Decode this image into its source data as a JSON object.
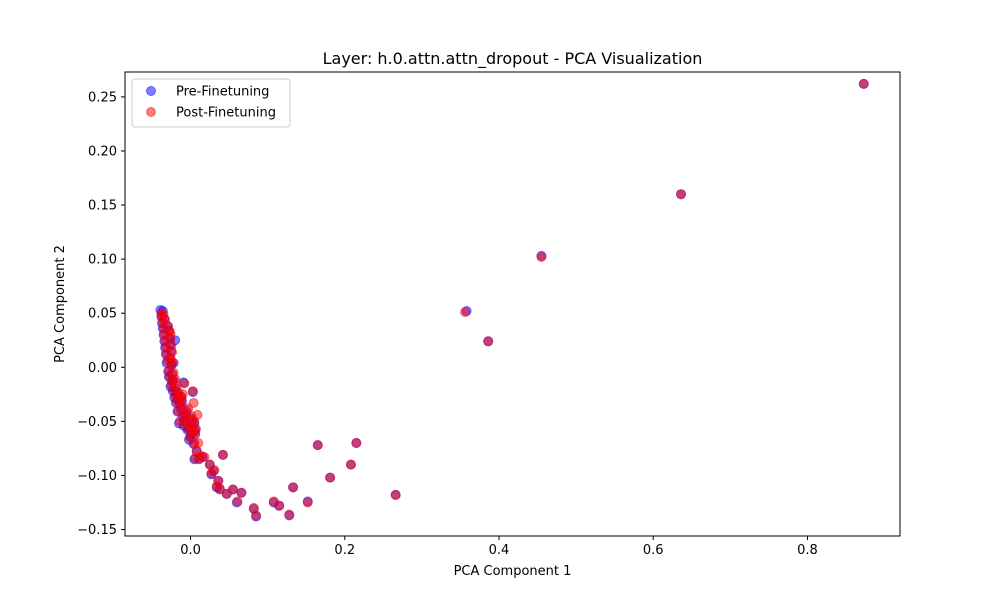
{
  "chart_data": {
    "type": "scatter",
    "title": "Layer: h.0.attn.attn_dropout - PCA Visualization",
    "xlabel": "PCA Component 1",
    "ylabel": "PCA Component 2",
    "xlim": [
      -0.085,
      0.92
    ],
    "ylim": [
      -0.156,
      0.273
    ],
    "xticks": [
      0.0,
      0.2,
      0.4,
      0.6,
      0.8
    ],
    "xtick_labels": [
      "0.0",
      "0.2",
      "0.4",
      "0.6",
      "0.8"
    ],
    "yticks": [
      -0.15,
      -0.1,
      -0.05,
      0.0,
      0.05,
      0.1,
      0.15,
      0.2,
      0.25
    ],
    "ytick_labels": [
      "−0.15",
      "−0.10",
      "−0.05",
      "0.00",
      "0.05",
      "0.10",
      "0.15",
      "0.20",
      "0.25"
    ],
    "grid": false,
    "legend_position": "top-left",
    "series": [
      {
        "name": "Pre-Finetuning",
        "color": "#0000ff",
        "alpha": 0.5,
        "points": [
          [
            0.873,
            0.262
          ],
          [
            0.636,
            0.16
          ],
          [
            0.455,
            0.103
          ],
          [
            0.358,
            0.052
          ],
          [
            0.386,
            0.024
          ],
          [
            0.266,
            -0.118
          ],
          [
            0.215,
            -0.07
          ],
          [
            0.208,
            -0.09
          ],
          [
            0.181,
            -0.102
          ],
          [
            0.165,
            -0.072
          ],
          [
            0.152,
            -0.124
          ],
          [
            0.133,
            -0.111
          ],
          [
            0.128,
            -0.137
          ],
          [
            0.115,
            -0.128
          ],
          [
            0.108,
            -0.125
          ],
          [
            0.085,
            -0.138
          ],
          [
            0.082,
            -0.131
          ],
          [
            0.066,
            -0.116
          ],
          [
            0.06,
            -0.125
          ],
          [
            0.055,
            -0.113
          ],
          [
            0.047,
            -0.117
          ],
          [
            0.042,
            -0.081
          ],
          [
            0.038,
            -0.113
          ],
          [
            0.036,
            -0.105
          ],
          [
            0.034,
            -0.111
          ],
          [
            0.03,
            -0.096
          ],
          [
            0.027,
            -0.099
          ],
          [
            0.025,
            -0.09
          ],
          [
            0.016,
            -0.083
          ],
          [
            0.011,
            -0.085
          ],
          [
            0.008,
            -0.078
          ],
          [
            0.005,
            -0.085
          ],
          [
            0.006,
            -0.062
          ],
          [
            0.004,
            -0.071
          ],
          [
            0.005,
            -0.052
          ],
          [
            0.003,
            -0.023
          ],
          [
            0.001,
            -0.061
          ],
          [
            -0.002,
            -0.067
          ],
          [
            -0.004,
            -0.058
          ],
          [
            -0.006,
            -0.044
          ],
          [
            -0.009,
            -0.054
          ],
          [
            -0.012,
            -0.039
          ],
          [
            -0.011,
            -0.031
          ],
          [
            -0.015,
            -0.052
          ],
          [
            -0.017,
            -0.041
          ],
          [
            -0.019,
            -0.033
          ],
          [
            -0.021,
            -0.028
          ],
          [
            -0.023,
            -0.022
          ],
          [
            -0.024,
            -0.013
          ],
          [
            -0.026,
            -0.018
          ],
          [
            -0.028,
            -0.009
          ],
          [
            -0.029,
            -0.004
          ],
          [
            -0.022,
            0.004
          ],
          [
            -0.031,
            0.004
          ],
          [
            -0.032,
            0.012
          ],
          [
            -0.033,
            0.018
          ],
          [
            -0.034,
            0.024
          ],
          [
            -0.02,
            0.025
          ],
          [
            -0.035,
            0.03
          ],
          [
            -0.036,
            0.036
          ],
          [
            -0.037,
            0.041
          ],
          [
            -0.038,
            0.047
          ],
          [
            -0.039,
            0.053
          ],
          [
            -0.036,
            0.052
          ],
          [
            -0.034,
            0.045
          ],
          [
            -0.03,
            0.038
          ],
          [
            -0.028,
            0.034
          ],
          [
            -0.027,
            0.027
          ],
          [
            -0.026,
            0.021
          ],
          [
            -0.025,
            0.015
          ],
          [
            -0.027,
            0.008
          ],
          [
            -0.025,
            0.002
          ],
          [
            -0.024,
            -0.006
          ],
          [
            -0.022,
            -0.012
          ],
          [
            -0.02,
            -0.019
          ],
          [
            -0.018,
            -0.024
          ],
          [
            -0.016,
            -0.029
          ],
          [
            -0.014,
            -0.034
          ],
          [
            -0.012,
            -0.027
          ],
          [
            -0.009,
            -0.014
          ],
          [
            -0.01,
            -0.046
          ],
          [
            -0.008,
            -0.049
          ],
          [
            -0.005,
            -0.04
          ],
          [
            -0.003,
            -0.056
          ],
          [
            0.0,
            -0.047
          ],
          [
            0.002,
            -0.051
          ],
          [
            0.0,
            -0.064
          ],
          [
            0.006,
            -0.058
          ]
        ]
      },
      {
        "name": "Post-Finetuning",
        "color": "#ff0000",
        "alpha": 0.5,
        "points": [
          [
            0.873,
            0.262
          ],
          [
            0.636,
            0.16
          ],
          [
            0.455,
            0.102
          ],
          [
            0.356,
            0.051
          ],
          [
            0.386,
            0.024
          ],
          [
            0.266,
            -0.118
          ],
          [
            0.215,
            -0.07
          ],
          [
            0.208,
            -0.09
          ],
          [
            0.181,
            -0.102
          ],
          [
            0.165,
            -0.072
          ],
          [
            0.152,
            -0.125
          ],
          [
            0.133,
            -0.111
          ],
          [
            0.128,
            -0.136
          ],
          [
            0.115,
            -0.128
          ],
          [
            0.108,
            -0.124
          ],
          [
            0.085,
            -0.137
          ],
          [
            0.082,
            -0.13
          ],
          [
            0.066,
            -0.116
          ],
          [
            0.061,
            -0.124
          ],
          [
            0.055,
            -0.113
          ],
          [
            0.047,
            -0.117
          ],
          [
            0.042,
            -0.081
          ],
          [
            0.038,
            -0.112
          ],
          [
            0.036,
            -0.105
          ],
          [
            0.034,
            -0.11
          ],
          [
            0.031,
            -0.095
          ],
          [
            0.027,
            -0.098
          ],
          [
            0.025,
            -0.09
          ],
          [
            0.018,
            -0.083
          ],
          [
            0.012,
            -0.084
          ],
          [
            0.008,
            -0.077
          ],
          [
            0.006,
            -0.084
          ],
          [
            0.006,
            -0.06
          ],
          [
            0.005,
            -0.07
          ],
          [
            0.005,
            -0.05
          ],
          [
            0.003,
            -0.022
          ],
          [
            0.002,
            -0.058
          ],
          [
            -0.001,
            -0.065
          ],
          [
            -0.004,
            -0.056
          ],
          [
            -0.006,
            -0.042
          ],
          [
            -0.008,
            -0.052
          ],
          [
            -0.011,
            -0.037
          ],
          [
            -0.012,
            -0.029
          ],
          [
            -0.014,
            -0.05
          ],
          [
            -0.016,
            -0.04
          ],
          [
            -0.018,
            -0.031
          ],
          [
            -0.02,
            -0.026
          ],
          [
            -0.022,
            -0.02
          ],
          [
            -0.023,
            -0.012
          ],
          [
            -0.025,
            -0.016
          ],
          [
            -0.027,
            -0.008
          ],
          [
            -0.028,
            -0.003
          ],
          [
            -0.024,
            0.005
          ],
          [
            -0.03,
            0.006
          ],
          [
            -0.031,
            0.013
          ],
          [
            -0.032,
            0.019
          ],
          [
            -0.033,
            0.025
          ],
          [
            -0.026,
            0.031
          ],
          [
            -0.034,
            0.031
          ],
          [
            -0.035,
            0.037
          ],
          [
            -0.036,
            0.042
          ],
          [
            -0.037,
            0.047
          ],
          [
            -0.038,
            0.05
          ],
          [
            -0.035,
            0.049
          ],
          [
            -0.033,
            0.044
          ],
          [
            -0.029,
            0.038
          ],
          [
            -0.027,
            0.033
          ],
          [
            -0.026,
            0.026
          ],
          [
            -0.025,
            0.02
          ],
          [
            -0.024,
            0.014
          ],
          [
            -0.026,
            0.009
          ],
          [
            -0.024,
            0.003
          ],
          [
            -0.022,
            -0.005
          ],
          [
            -0.02,
            -0.011
          ],
          [
            -0.018,
            -0.018
          ],
          [
            -0.016,
            -0.023
          ],
          [
            -0.014,
            -0.028
          ],
          [
            -0.012,
            -0.033
          ],
          [
            -0.01,
            -0.025
          ],
          [
            -0.008,
            -0.015
          ],
          [
            -0.008,
            -0.044
          ],
          [
            -0.006,
            -0.047
          ],
          [
            -0.003,
            -0.038
          ],
          [
            -0.001,
            -0.054
          ],
          [
            0.001,
            -0.045
          ],
          [
            0.003,
            -0.049
          ],
          [
            0.002,
            -0.062
          ],
          [
            0.007,
            -0.057
          ],
          [
            0.009,
            -0.044
          ],
          [
            0.004,
            -0.033
          ],
          [
            0.01,
            -0.07
          ],
          [
            0.014,
            -0.082
          ]
        ]
      }
    ]
  }
}
